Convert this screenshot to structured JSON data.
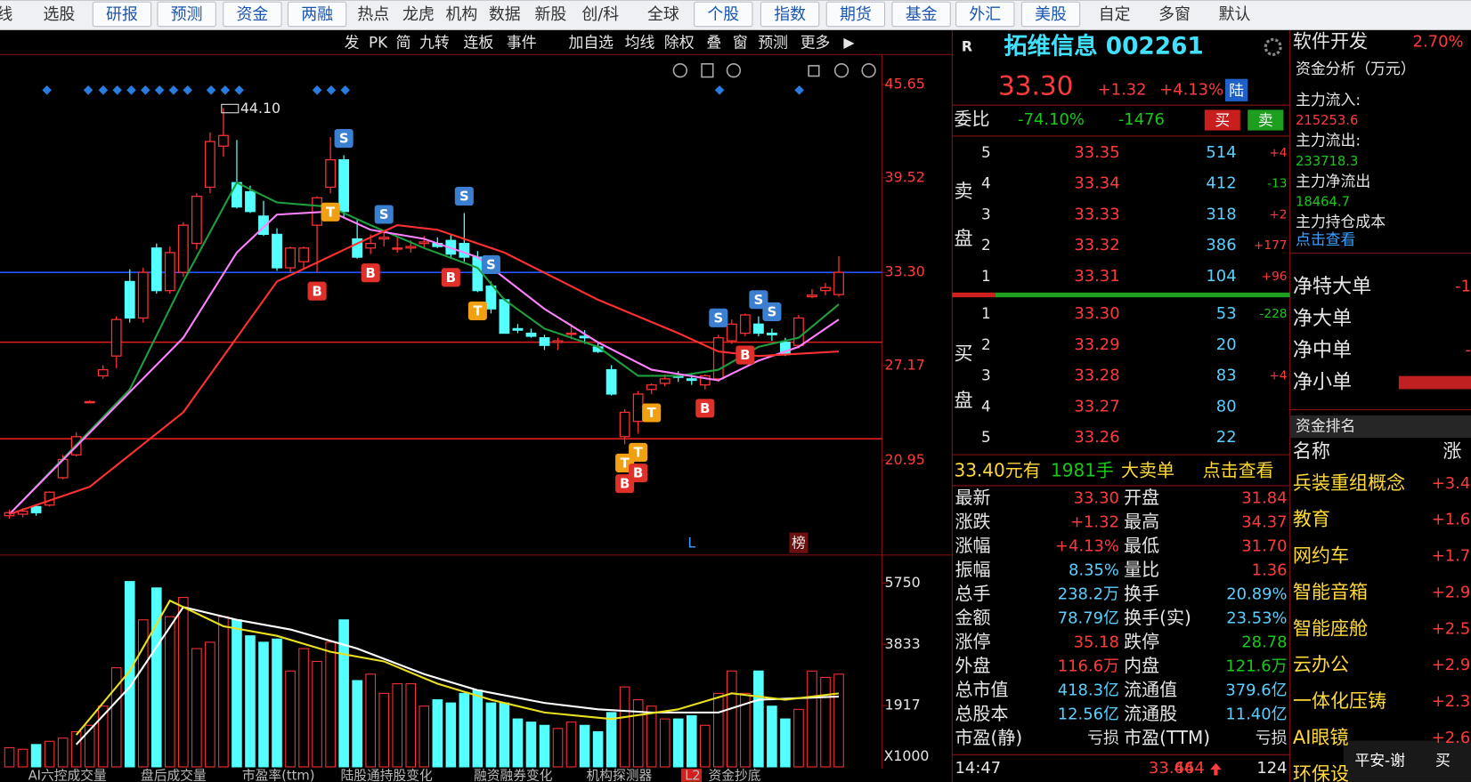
{
  "toolbar": [
    {
      "label": "线"
    },
    {
      "label": "选股"
    },
    {
      "label": "研报",
      "button": true
    },
    {
      "label": "预测",
      "button": true
    },
    {
      "label": "资金",
      "button": true
    },
    {
      "label": "两融",
      "button": true
    },
    {
      "label": "热点"
    },
    {
      "label": "龙虎"
    },
    {
      "label": "机构"
    },
    {
      "label": "数据"
    },
    {
      "label": "新股"
    },
    {
      "label": "创/科"
    },
    {
      "label": "全球"
    },
    {
      "label": "个股",
      "button": true
    },
    {
      "label": "指数",
      "button": true
    },
    {
      "label": "期货",
      "button": true
    },
    {
      "label": "基金",
      "button": true
    },
    {
      "label": "外汇",
      "button": true
    },
    {
      "label": "美股",
      "button": true
    },
    {
      "label": "自定"
    },
    {
      "label": "多窗"
    },
    {
      "label": "默认"
    }
  ],
  "chart_toolbar": [
    "发",
    "PK",
    "简",
    "九转",
    "连板",
    "事件",
    "加自选",
    "均线",
    "除权",
    "叠",
    "窗",
    "预测",
    "更多"
  ],
  "kline": {
    "type": "candlestick",
    "up_color": "#ff3232",
    "down_color": "#54ffff",
    "ylim": [
      14.84,
      49.04
    ],
    "yticks": [
      45.65,
      39.52,
      {
        "value": 33.3,
        "label": "33.30"
      },
      27.17,
      20.95
    ],
    "candles": [
      [
        17.3,
        17.7,
        17.1,
        17.5
      ],
      [
        17.4,
        17.8,
        17.2,
        17.6
      ],
      [
        17.9,
        18.0,
        17.3,
        17.5
      ],
      [
        18.0,
        18.9,
        17.9,
        18.85
      ],
      [
        19.8,
        21.3,
        19.7,
        21.0
      ],
      [
        21.3,
        22.8,
        21.2,
        22.5
      ],
      [
        24.8,
        24.9,
        24.7,
        24.8
      ],
      [
        26.5,
        27.2,
        26.3,
        26.9
      ],
      [
        27.8,
        30.4,
        27.0,
        30.2
      ],
      [
        32.7,
        33.5,
        30.0,
        30.3
      ],
      [
        30.3,
        33.6,
        30.0,
        33.3
      ],
      [
        34.9,
        35.2,
        31.9,
        32.1
      ],
      [
        32.1,
        35.0,
        31.9,
        34.6
      ],
      [
        33.3,
        36.6,
        33.0,
        36.4
      ],
      [
        35.2,
        38.5,
        34.8,
        38.3
      ],
      [
        38.9,
        42.5,
        38.5,
        41.9
      ],
      [
        41.6,
        44.1,
        40.9,
        42.3
      ],
      [
        39.2,
        42.0,
        37.5,
        37.6
      ],
      [
        38.6,
        39.0,
        37.2,
        37.3
      ],
      [
        37.0,
        38.0,
        35.7,
        35.8
      ],
      [
        35.8,
        36.2,
        33.4,
        33.6
      ],
      [
        33.6,
        35.0,
        33.3,
        34.9
      ],
      [
        34.0,
        35.0,
        33.5,
        34.9
      ],
      [
        36.4,
        38.3,
        33.3,
        38.2
      ],
      [
        38.9,
        42.2,
        38.5,
        40.7
      ],
      [
        40.7,
        41.0,
        36.9,
        37.3
      ],
      [
        35.5,
        36.8,
        34.2,
        34.3
      ],
      [
        34.9,
        35.8,
        34.5,
        35.2
      ],
      [
        35.5,
        36.0,
        35.0,
        35.6
      ],
      [
        34.9,
        35.6,
        34.6,
        34.9
      ],
      [
        34.9,
        35.4,
        34.6,
        35.0
      ],
      [
        35.2,
        35.7,
        34.9,
        35.3
      ],
      [
        35.2,
        35.6,
        34.9,
        35.0
      ],
      [
        35.4,
        35.8,
        34.2,
        34.5
      ],
      [
        35.2,
        37.2,
        34.0,
        34.3
      ],
      [
        34.3,
        34.7,
        32.0,
        32.1
      ],
      [
        32.4,
        32.7,
        30.6,
        30.9
      ],
      [
        31.5,
        31.6,
        29.3,
        29.3
      ],
      [
        29.6,
        29.9,
        29.3,
        29.5
      ],
      [
        29.3,
        29.6,
        29.0,
        29.1
      ],
      [
        29.0,
        29.2,
        28.2,
        28.5
      ],
      [
        28.7,
        29.0,
        28.2,
        28.8
      ],
      [
        29.3,
        29.9,
        28.9,
        29.3
      ],
      [
        29.1,
        29.5,
        28.6,
        29.0
      ],
      [
        28.4,
        28.7,
        28.0,
        28.1
      ],
      [
        26.9,
        27.2,
        25.2,
        25.3
      ],
      [
        22.5,
        24.3,
        22.0,
        24.1
      ],
      [
        23.5,
        25.5,
        22.7,
        25.3
      ],
      [
        25.6,
        26.0,
        25.3,
        25.9
      ],
      [
        26.0,
        26.6,
        25.8,
        26.3
      ],
      [
        26.5,
        26.8,
        26.1,
        26.4
      ],
      [
        26.3,
        26.6,
        25.9,
        26.2
      ],
      [
        25.9,
        26.6,
        25.6,
        26.5
      ],
      [
        26.3,
        29.2,
        26.1,
        29.0
      ],
      [
        28.8,
        30.2,
        28.6,
        29.9
      ],
      [
        29.3,
        30.6,
        29.1,
        30.5
      ],
      [
        29.9,
        30.4,
        29.1,
        29.3
      ],
      [
        29.3,
        29.6,
        28.8,
        29.2
      ],
      [
        28.7,
        29.0,
        27.8,
        27.9
      ],
      [
        28.5,
        30.5,
        28.3,
        30.3
      ],
      [
        31.7,
        32.2,
        31.6,
        31.8
      ],
      [
        32.1,
        32.6,
        31.8,
        32.3
      ],
      [
        31.84,
        34.37,
        31.7,
        33.3
      ]
    ],
    "ma_lines": [
      {
        "color": "#1e9e3e",
        "x": [
          0,
          9,
          13,
          17,
          20,
          24,
          27,
          31,
          35,
          37,
          40,
          44,
          47,
          50,
          53,
          56,
          59,
          62
        ],
        "values": [
          17.4,
          25.6,
          32.7,
          39.2,
          37.9,
          37.6,
          36.4,
          34.9,
          33.6,
          31.5,
          29.6,
          28.4,
          26.5,
          26.5,
          26.9,
          28.4,
          29.0,
          31.2
        ]
      },
      {
        "color": "#ff80ff",
        "x": [
          0,
          13,
          17,
          20,
          24,
          27,
          31,
          35,
          40,
          44,
          48,
          53,
          56,
          59,
          62
        ],
        "values": [
          17.4,
          29.0,
          34.6,
          37.1,
          37.3,
          36.1,
          35.5,
          34.3,
          30.9,
          28.7,
          26.9,
          26.2,
          27.5,
          28.4,
          30.2
        ]
      },
      {
        "color": "#ff3030",
        "x": [
          0,
          6,
          13,
          20,
          26,
          29,
          32,
          37,
          44,
          50,
          53,
          56,
          62
        ],
        "values": [
          17.4,
          19.2,
          24.1,
          32.7,
          35.2,
          36.4,
          36.1,
          34.6,
          31.5,
          29.3,
          28.1,
          27.8,
          28.1
        ]
      }
    ],
    "hlines": [
      {
        "value": 33.3,
        "color": "#2255ff"
      },
      {
        "value": 28.71,
        "color": "#e02020"
      },
      {
        "value": 22.36,
        "color": "#e02020"
      }
    ],
    "peak": {
      "value": 44.1,
      "label": "44.10",
      "candle": 16
    },
    "signals": [
      {
        "label": "S",
        "candle": 25
      },
      {
        "label": "S",
        "candle": 28
      },
      {
        "label": "S",
        "candle": 34
      },
      {
        "label": "S",
        "candle": 36
      },
      {
        "label": "S",
        "candle": 53
      },
      {
        "label": "S",
        "candle": 56
      },
      {
        "label": "S",
        "candle": 57
      },
      {
        "label": "T",
        "candle": 24
      },
      {
        "label": "T",
        "candle": 35
      },
      {
        "label": "T",
        "candle": 47
      },
      {
        "label": "T",
        "candle": 48
      },
      {
        "label": "T",
        "candle": 46
      },
      {
        "label": "B",
        "candle": 23
      },
      {
        "label": "B",
        "candle": 27
      },
      {
        "label": "B",
        "candle": 33
      },
      {
        "label": "B",
        "candle": 47
      },
      {
        "label": "B",
        "candle": 52
      },
      {
        "label": "B",
        "candle": 55
      },
      {
        "label": "B",
        "candle": 46
      }
    ],
    "events": [
      {
        "label": "L",
        "candle": 51
      },
      {
        "label": "榜",
        "candle": 59
      }
    ]
  },
  "volume": {
    "type": "bar",
    "ylim": [
      0,
      6540
    ],
    "yticks": [
      5750,
      3833,
      1917
    ],
    "unit_label": "X1000",
    "values": [
      600,
      550,
      700,
      800,
      900,
      1100,
      1300,
      1900,
      3100,
      5800,
      4600,
      5600,
      4700,
      5300,
      3700,
      3900,
      4700,
      4600,
      4100,
      3900,
      4000,
      3000,
      3700,
      3300,
      3900,
      4600,
      2700,
      2900,
      2300,
      2600,
      2600,
      1900,
      2100,
      2000,
      2300,
      2400,
      2000,
      2000,
      1500,
      1400,
      1300,
      1200,
      1400,
      1300,
      1100,
      1700,
      2500,
      2100,
      1900,
      1500,
      1500,
      1600,
      1300,
      2300,
      3000,
      2300,
      3000,
      1900,
      1500,
      1800,
      3000,
      2800,
      2900
    ],
    "ma_lines": [
      {
        "color": "#ffffff",
        "x": [
          5,
          9,
          13,
          17,
          21,
          26,
          31,
          35,
          40,
          44,
          48,
          53,
          56,
          62
        ],
        "values": [
          700,
          2500,
          5000,
          4600,
          4300,
          3700,
          2900,
          2400,
          2000,
          1800,
          1700,
          1700,
          2100,
          2200
        ]
      },
      {
        "color": "#e8e020",
        "x": [
          5,
          9,
          12,
          16,
          20,
          24,
          28,
          32,
          36,
          40,
          45,
          50,
          54,
          58,
          62
        ],
        "values": [
          1000,
          3000,
          5200,
          4400,
          4100,
          3600,
          3300,
          2600,
          2100,
          1700,
          1500,
          1800,
          2300,
          2100,
          2300
        ]
      }
    ]
  },
  "bottom_tabs": [
    "AI六控成交量",
    "盘后成交量",
    "市盈率(ttm)",
    "陆股通持股变化",
    "融资融券变化",
    "机构探测器",
    "L2",
    "资金抄底"
  ],
  "quote": {
    "flag": "R",
    "title": "拓维信息 002261",
    "price": "33.30",
    "change": "+1.32",
    "change_pct": "+4.13%",
    "market": "陆",
    "weibi_label": "委比",
    "weibi_pct": "-74.10%",
    "weibi_diff": "-1476",
    "buy_button": "买",
    "sell_button": "卖",
    "sell_label": [
      "卖",
      "盘"
    ],
    "buy_label": [
      "买",
      "盘"
    ],
    "sell": [
      {
        "level": "5",
        "price": "33.35",
        "volume": "514",
        "change": "+4"
      },
      {
        "level": "4",
        "price": "33.34",
        "volume": "412",
        "change": "-13"
      },
      {
        "level": "3",
        "price": "33.33",
        "volume": "318",
        "change": "+2"
      },
      {
        "level": "2",
        "price": "33.32",
        "volume": "386",
        "change": "+177"
      },
      {
        "level": "1",
        "price": "33.31",
        "volume": "104",
        "change": "+96"
      }
    ],
    "buy": [
      {
        "level": "1",
        "price": "33.30",
        "volume": "53",
        "change": "-228"
      },
      {
        "level": "2",
        "price": "33.29",
        "volume": "20"
      },
      {
        "level": "3",
        "price": "33.28",
        "volume": "83",
        "change": "+4"
      },
      {
        "level": "4",
        "price": "33.27",
        "volume": "80"
      },
      {
        "level": "5",
        "price": "33.26",
        "volume": "22"
      }
    ],
    "big_order": [
      "33.40元有",
      "1981手",
      "大卖单",
      "点击查看"
    ],
    "stats": [
      [
        {
          "label": "最新",
          "value": "33.30",
          "color": "#ff3b3b"
        },
        {
          "label": "开盘",
          "value": "31.84",
          "color": "#ff3b3b"
        }
      ],
      [
        {
          "label": "涨跌",
          "value": "+1.32",
          "color": "#ff3b3b"
        },
        {
          "label": "最高",
          "value": "34.37",
          "color": "#ff3b3b"
        }
      ],
      [
        {
          "label": "涨幅",
          "value": "+4.13%",
          "color": "#ff3b3b"
        },
        {
          "label": "最低",
          "value": "31.70",
          "color": "#ff3b3b"
        }
      ],
      [
        {
          "label": "振幅",
          "value": "8.35%",
          "color": "#5ad0ff"
        },
        {
          "label": "量比",
          "value": "1.36",
          "color": "#ff3b3b"
        }
      ],
      [
        {
          "label": "总手",
          "value": "238.2万",
          "color": "#5ad0ff"
        },
        {
          "label": "换手",
          "value": "20.89%",
          "color": "#5ad0ff"
        }
      ],
      [
        {
          "label": "金额",
          "value": "78.79亿",
          "color": "#5ad0ff"
        },
        {
          "label": "换手(实)",
          "value": "23.53%",
          "color": "#5ad0ff"
        }
      ],
      [
        {
          "label": "涨停",
          "value": "35.18",
          "color": "#ff3b3b"
        },
        {
          "label": "跌停",
          "value": "28.78",
          "color": "#19c819"
        }
      ],
      [
        {
          "label": "外盘",
          "value": "116.6万",
          "color": "#ff3b3b"
        },
        {
          "label": "内盘",
          "value": "121.6万",
          "color": "#19c819"
        }
      ],
      [
        {
          "label": "总市值",
          "value": "418.3亿",
          "color": "#5ad0ff"
        },
        {
          "label": "流通值",
          "value": "379.6亿",
          "color": "#5ad0ff"
        }
      ],
      [
        {
          "label": "总股本",
          "value": "12.56亿",
          "color": "#5ad0ff"
        },
        {
          "label": "流通股",
          "value": "11.40亿",
          "color": "#5ad0ff"
        }
      ],
      [
        {
          "label": "市盈(静)",
          "value": "亏损",
          "color": "#dddddd"
        },
        {
          "label": "市盈(TTM)",
          "value": "亏损",
          "color": "#dddddd"
        }
      ]
    ],
    "tick": {
      "time": "14:47",
      "price": "33.44",
      "volume": "664",
      "count": "124"
    }
  },
  "sidebar": {
    "sector": "软件开发",
    "sector_pct": "2.70%",
    "fund_title": "资金分析（万元）",
    "fund_rows": [
      {
        "label": "主力流入:",
        "value": "215253.6",
        "color": "#ff3b3b"
      },
      {
        "label": "主力流出:",
        "value": "233718.3",
        "color": "#19c819"
      },
      {
        "label": "主力净流出",
        "value": "18464.7",
        "color": "#19c819"
      }
    ],
    "cost_label": "主力持仓成本",
    "cost_link": "点击查看",
    "net": [
      {
        "label": "净特大单",
        "value": "-1"
      },
      {
        "label": "净大单"
      },
      {
        "label": "净中单",
        "value": "-"
      },
      {
        "label": "净小单"
      }
    ],
    "rank_title": "资金排名",
    "rank_header": [
      "名称",
      "涨"
    ],
    "rank": [
      {
        "name": "兵装重组概念",
        "value": "+3.4"
      },
      {
        "name": "教育",
        "value": "+1.6"
      },
      {
        "name": "网约车",
        "value": "+1.7"
      },
      {
        "name": "智能音箱",
        "value": "+2.9"
      },
      {
        "name": "智能座舱",
        "value": "+2.5"
      },
      {
        "name": "云办公",
        "value": "+2.9"
      },
      {
        "name": "一体化压铸",
        "value": "+2.3"
      },
      {
        "name": "AI眼镜",
        "value": "+2.6"
      },
      {
        "name": "环保设"
      }
    ],
    "popup": [
      "平安-谢",
      "买"
    ]
  }
}
